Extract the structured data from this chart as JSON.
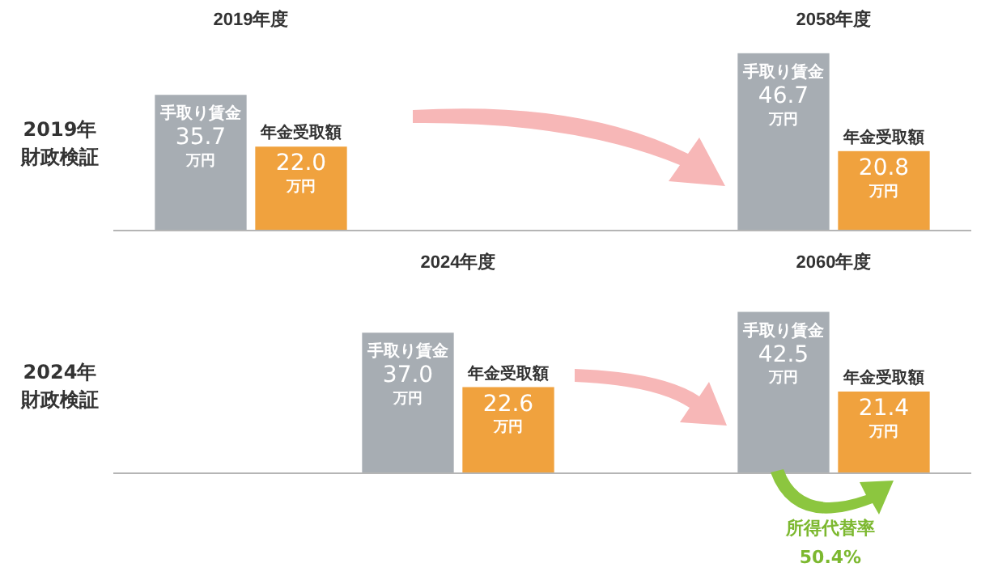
{
  "chart_data": [
    {
      "type": "bar",
      "ylabel": "2019年財政検証",
      "categories": [
        "2019年度",
        "2058年度"
      ],
      "tick_labels": "x",
      "series": [
        {
          "name": "手取り賃金",
          "color": "#a7adb3",
          "values": [
            35.7,
            46.7
          ],
          "value_labels": [
            "35.7\n万円",
            "46.7\n万円"
          ]
        },
        {
          "name": "年金受取額",
          "color": "#f0a23e",
          "values": [
            22.0,
            20.8
          ],
          "value_labels": [
            "22.0\n万円",
            "20.8\n万円"
          ]
        }
      ]
    },
    {
      "type": "bar",
      "ylabel": "2024年財政検証",
      "categories": [
        "2024年度",
        "2060年度"
      ],
      "tick_labels": "x",
      "annotations": [
        "所得代替率\n50.4%"
      ],
      "series": [
        {
          "name": "手取り賃金",
          "color": "#a7adb3",
          "values": [
            37.0,
            42.5
          ],
          "value_labels": [
            "37.0\n万円",
            "42.5\n万円"
          ]
        },
        {
          "name": "年金受取額",
          "color": "#f0a23e",
          "values": [
            22.6,
            21.4
          ],
          "value_labels": [
            "22.6\n万円",
            "21.4\n万円"
          ]
        }
      ]
    }
  ]
}
